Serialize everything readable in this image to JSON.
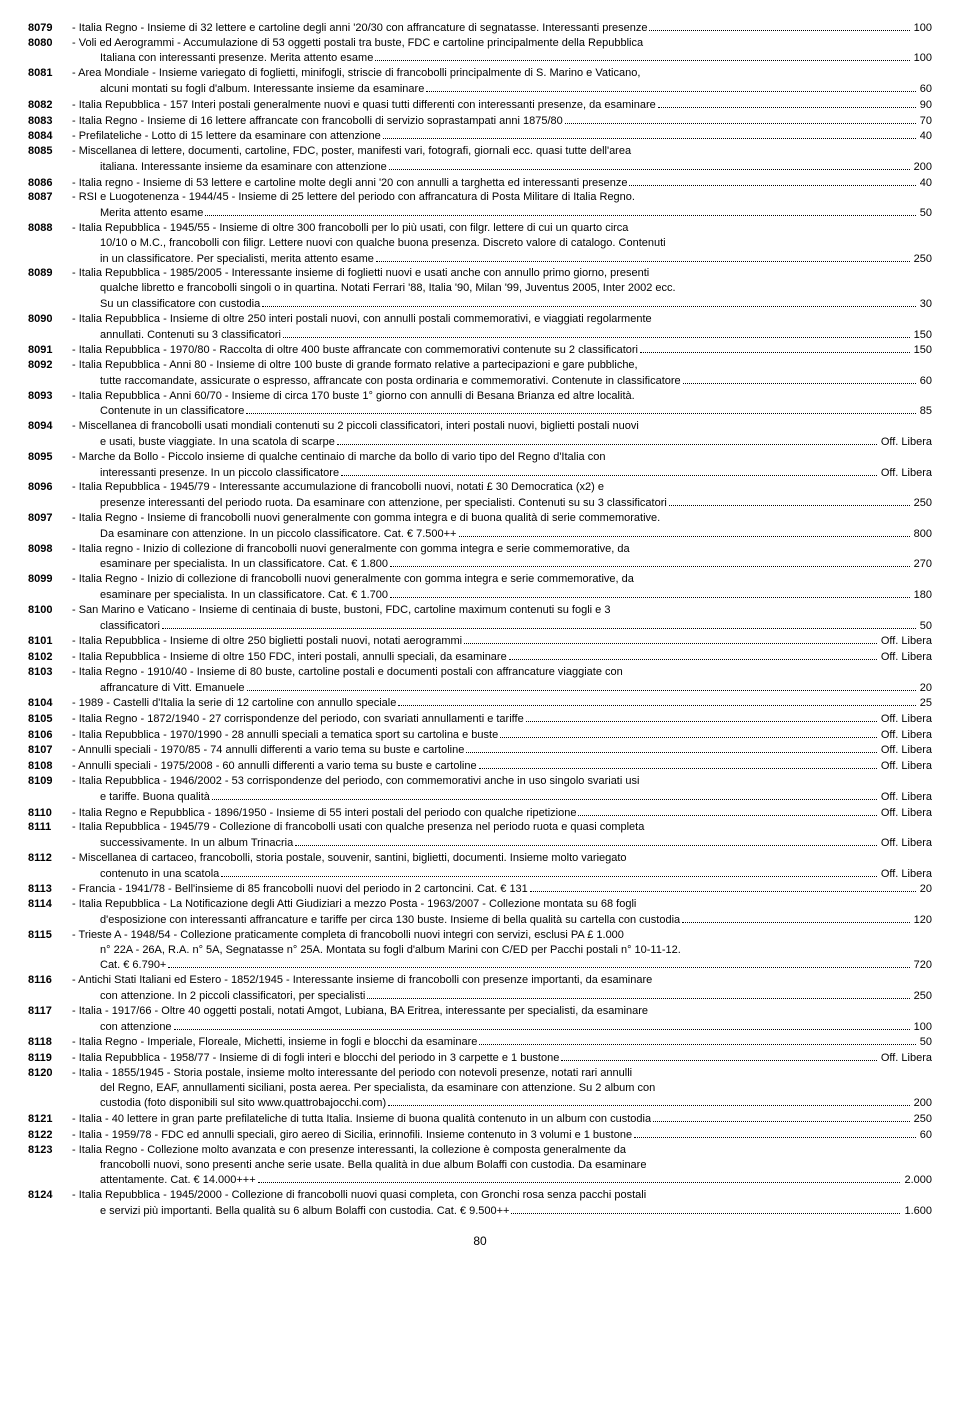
{
  "page_number": "80",
  "lots": [
    {
      "num": "8079",
      "lines": [
        {
          "t": "- Italia Regno - Insieme di 32 lettere e cartoline degli anni '20/30 con affrancature di segnatasse. Interessanti presenze",
          "p": "100"
        }
      ]
    },
    {
      "num": "8080",
      "lines": [
        {
          "t": "- Voli ed Aerogrammi - Accumulazione di 53 oggetti postali tra buste, FDC e cartoline principalmente della Repubblica"
        },
        {
          "t": "Italiana con interessanti presenze. Merita attento esame",
          "p": "100",
          "i": true
        }
      ]
    },
    {
      "num": "8081",
      "lines": [
        {
          "t": "- Area Mondiale - Insieme variegato di foglietti, minifogli, striscie di francobolli principalmente di S. Marino e Vaticano,"
        },
        {
          "t": "alcuni montati su fogli d'album. Interessante insieme da esaminare",
          "p": "60",
          "i": true
        }
      ]
    },
    {
      "num": "8082",
      "lines": [
        {
          "t": "- Italia Repubblica - 157 Interi postali generalmente nuovi e quasi tutti differenti con interessanti presenze, da esaminare",
          "p": "90"
        }
      ]
    },
    {
      "num": "8083",
      "lines": [
        {
          "t": "- Italia Regno - Insieme di 16 lettere affrancate con francobolli di servizio soprastampati anni 1875/80",
          "p": "70"
        }
      ]
    },
    {
      "num": "8084",
      "lines": [
        {
          "t": "- Prefilateliche - Lotto di 15 lettere da esaminare con attenzione",
          "p": "40"
        }
      ]
    },
    {
      "num": "8085",
      "lines": [
        {
          "t": "- Miscellanea di lettere, documenti, cartoline, FDC, poster, manifesti vari, fotografi, giornali ecc. quasi tutte dell'area"
        },
        {
          "t": "italiana. Interessante insieme da esaminare con attenzione",
          "p": "200",
          "i": true
        }
      ]
    },
    {
      "num": "8086",
      "lines": [
        {
          "t": "- Italia regno - Insieme di 53 lettere e cartoline molte degli anni '20 con annulli a targhetta ed interessanti presenze",
          "p": "40"
        }
      ]
    },
    {
      "num": "8087",
      "lines": [
        {
          "t": "- RSI e Luogotenenza - 1944/45 - Insieme di 25 lettere del periodo con affrancatura di Posta Militare di Italia Regno."
        },
        {
          "t": "Merita attento esame",
          "p": "50",
          "i": true
        }
      ]
    },
    {
      "num": "8088",
      "lines": [
        {
          "t": "- Italia Repubblica - 1945/55 - Insieme di oltre 300 francobolli per lo più usati, con filgr. lettere di cui un quarto circa"
        },
        {
          "t": "10/10 o M.C., francobolli con filigr. Lettere nuovi con qualche buona presenza. Discreto valore di catalogo. Contenuti",
          "i": true
        },
        {
          "t": "in un classificatore. Per specialisti, merita attento esame",
          "p": "250",
          "i": true
        }
      ]
    },
    {
      "num": "8089",
      "lines": [
        {
          "t": "- Italia Repubblica - 1985/2005 - Interessante insieme di foglietti nuovi e usati anche con annullo primo giorno, presenti"
        },
        {
          "t": "qualche libretto e francobolli singoli o in quartina. Notati Ferrari '88, Italia '90, Milan '99, Juventus 2005, Inter 2002 ecc.",
          "i": true
        },
        {
          "t": "Su un classificatore con custodia",
          "p": "30",
          "i": true
        }
      ]
    },
    {
      "num": "8090",
      "lines": [
        {
          "t": "- Italia Repubblica - Insieme di oltre 250 interi postali nuovi, con annulli postali commemorativi, e viaggiati regolarmente"
        },
        {
          "t": "annullati. Contenuti su 3 classificatori",
          "p": "150",
          "i": true
        }
      ]
    },
    {
      "num": "8091",
      "lines": [
        {
          "t": "- Italia Repubblica - 1970/80 - Raccolta di oltre 400 buste affrancate con commemorativi contenute su 2 classificatori",
          "p": "150"
        }
      ]
    },
    {
      "num": "8092",
      "lines": [
        {
          "t": "- Italia Repubblica - Anni 80 - Insieme di oltre 100 buste di grande formato relative a partecipazioni e gare pubbliche,"
        },
        {
          "t": "tutte raccomandate, assicurate o espresso, affrancate con posta ordinaria e commemorativi. Contenute in classificatore",
          "p": "60",
          "i": true
        }
      ]
    },
    {
      "num": "8093",
      "lines": [
        {
          "t": "- Italia Repubblica - Anni 60/70 - Insieme di circa 170 buste 1° giorno con annulli di Besana Brianza ed altre località."
        },
        {
          "t": "Contenute in un classificatore",
          "p": "85",
          "i": true
        }
      ]
    },
    {
      "num": "8094",
      "lines": [
        {
          "t": "- Miscellanea di francobolli usati mondiali contenuti su 2 piccoli classificatori, interi postali nuovi, biglietti postali nuovi"
        },
        {
          "t": "e usati, buste viaggiate. In una scatola di scarpe",
          "p": "Off. Libera",
          "i": true
        }
      ]
    },
    {
      "num": "8095",
      "lines": [
        {
          "t": "- Marche da Bollo - Piccolo insieme di qualche centinaio di marche da bollo di vario tipo del Regno d'Italia con"
        },
        {
          "t": "interessanti presenze. In un piccolo classificatore",
          "p": "Off. Libera",
          "i": true
        }
      ]
    },
    {
      "num": "8096",
      "lines": [
        {
          "t": "- Italia Repubblica - 1945/79 - Interessante accumulazione di francobolli nuovi, notati £ 30 Democratica (x2) e"
        },
        {
          "t": "presenze interessanti del periodo ruota. Da esaminare con attenzione, per specialisti. Contenuti su su 3 classificatori",
          "p": "250",
          "i": true
        }
      ]
    },
    {
      "num": "8097",
      "lines": [
        {
          "t": "- Italia Regno - Insieme di francobolli nuovi generalmente con gomma integra e di buona qualità di serie commemorative."
        },
        {
          "t": "Da esaminare con attenzione. In un piccolo classificatore. Cat. € 7.500++",
          "p": "800",
          "i": true
        }
      ]
    },
    {
      "num": "8098",
      "lines": [
        {
          "t": "- Italia regno - Inizio di collezione di francobolli nuovi generalmente con gomma integra e serie commemorative, da"
        },
        {
          "t": "esaminare per specialista. In un classificatore. Cat. € 1.800",
          "p": "270",
          "i": true
        }
      ]
    },
    {
      "num": "8099",
      "lines": [
        {
          "t": "- Italia Regno - Inizio di collezione di francobolli nuovi generalmente con gomma integra e serie commemorative, da"
        },
        {
          "t": "esaminare per specialista. In un classificatore. Cat. € 1.700",
          "p": "180",
          "i": true
        }
      ]
    },
    {
      "num": "8100",
      "lines": [
        {
          "t": "- San Marino e Vaticano - Insieme di centinaia di buste, bustoni, FDC, cartoline maximum contenuti su fogli e 3"
        },
        {
          "t": "classificatori",
          "p": "50",
          "i": true
        }
      ]
    },
    {
      "num": "8101",
      "lines": [
        {
          "t": "- Italia Repubblica - Insieme di oltre 250 biglietti postali nuovi, notati aerogrammi",
          "p": "Off. Libera"
        }
      ]
    },
    {
      "num": "8102",
      "lines": [
        {
          "t": "- Italia Repubblica - Insieme di oltre 150 FDC, interi postali, annulli speciali, da esaminare",
          "p": "Off. Libera"
        }
      ]
    },
    {
      "num": "8103",
      "lines": [
        {
          "t": "- Italia Regno - 1910/40 - Insieme di 80 buste, cartoline postali e documenti postali con affrancature viaggiate con"
        },
        {
          "t": "affrancature di Vitt. Emanuele",
          "p": "20",
          "i": true
        }
      ]
    },
    {
      "num": "8104",
      "lines": [
        {
          "t": "- 1989 - Castelli d'Italia la serie di 12 cartoline con annullo speciale",
          "p": "25"
        }
      ]
    },
    {
      "num": "8105",
      "lines": [
        {
          "t": "- Italia Regno - 1872/1940 - 27 corrispondenze del periodo, con svariati annullamenti e tariffe",
          "p": "Off. Libera"
        }
      ]
    },
    {
      "num": "8106",
      "lines": [
        {
          "t": "- Italia Repubblica - 1970/1990 - 28 annulli speciali a tematica sport su cartolina e buste",
          "p": "Off. Libera"
        }
      ]
    },
    {
      "num": "8107",
      "lines": [
        {
          "t": "- Annulli speciali - 1970/85 - 74 annulli differenti a vario tema su buste e cartoline",
          "p": "Off. Libera"
        }
      ]
    },
    {
      "num": "8108",
      "lines": [
        {
          "t": "- Annulli speciali - 1975/2008 - 60 annulli differenti a vario tema su buste e cartoline",
          "p": "Off. Libera"
        }
      ]
    },
    {
      "num": "8109",
      "lines": [
        {
          "t": "- Italia Repubblica - 1946/2002 - 53 corrispondenze del periodo, con commemorativi anche in uso singolo svariati usi"
        },
        {
          "t": "e tariffe. Buona qualità",
          "p": "Off. Libera",
          "i": true
        }
      ]
    },
    {
      "num": "8110",
      "lines": [
        {
          "t": "- Italia Regno e Repubblica - 1896/1950 - Insieme di 55 interi postali del periodo con qualche ripetizione",
          "p": "Off. Libera"
        }
      ]
    },
    {
      "num": "8111",
      "lines": [
        {
          "t": "- Italia Repubblica - 1945/79 - Collezione di francobolli usati con qualche presenza nel periodo ruota e quasi completa"
        },
        {
          "t": "successivamente. In un album Trinacria",
          "p": "Off. Libera",
          "i": true
        }
      ]
    },
    {
      "num": "8112",
      "lines": [
        {
          "t": "- Miscellanea di cartaceo, francobolli, storia postale, souvenir, santini, biglietti, documenti. Insieme molto variegato"
        },
        {
          "t": "contenuto in una scatola",
          "p": "Off. Libera",
          "i": true
        }
      ]
    },
    {
      "num": "8113",
      "lines": [
        {
          "t": "- Francia - 1941/78 - Bell'insieme di 85 francobolli nuovi del periodo in 2 cartoncini. Cat. € 131",
          "p": "20"
        }
      ]
    },
    {
      "num": "8114",
      "lines": [
        {
          "t": "- Italia Repubblica - La Notificazione degli Atti Giudiziari a mezzo Posta - 1963/2007 - Collezione montata su 68 fogli"
        },
        {
          "t": "d'esposizione con interessanti affrancature e tariffe per circa 130 buste. Insieme di bella qualità su cartella con custodia",
          "p": "120",
          "i": true
        }
      ]
    },
    {
      "num": "8115",
      "lines": [
        {
          "t": "- Trieste A - 1948/54 - Collezione praticamente completa di francobolli nuovi integri con servizi, esclusi PA £ 1.000"
        },
        {
          "t": "n° 22A - 26A, R.A. n° 5A, Segnatasse n° 25A. Montata su fogli d'album Marini con C/ED per Pacchi postali n° 10-11-12.",
          "i": true
        },
        {
          "t": "Cat. € 6.790+",
          "p": "720",
          "i": true
        }
      ]
    },
    {
      "num": "8116",
      "lines": [
        {
          "t": "- Antichi Stati Italiani ed Estero - 1852/1945 - Interessante insieme di francobolli con presenze importanti, da esaminare"
        },
        {
          "t": "con attenzione. In 2 piccoli classificatori, per specialisti",
          "p": "250",
          "i": true
        }
      ]
    },
    {
      "num": "8117",
      "lines": [
        {
          "t": "- Italia - 1917/66 - Oltre 40 oggetti postali, notati Amgot, Lubiana, BA Eritrea, interessante per specialisti, da esaminare"
        },
        {
          "t": "con attenzione",
          "p": "100",
          "i": true
        }
      ]
    },
    {
      "num": "8118",
      "lines": [
        {
          "t": "- Italia Regno - Imperiale, Floreale, Michetti, insieme in fogli e blocchi da esaminare",
          "p": "50"
        }
      ]
    },
    {
      "num": "8119",
      "lines": [
        {
          "t": "- Italia Repubblica - 1958/77 - Insieme di di fogli interi e blocchi del periodo in 3 carpette e 1 bustone",
          "p": "Off. Libera"
        }
      ]
    },
    {
      "num": "8120",
      "lines": [
        {
          "t": "- Italia - 1855/1945 - Storia postale, insieme molto interessante del periodo con notevoli presenze, notati rari annulli"
        },
        {
          "t": "del Regno, EAF, annullamenti siciliani, posta aerea. Per specialista, da esaminare con attenzione. Su 2 album con",
          "i": true
        },
        {
          "t": "custodia (foto disponibili sul sito www.quattrobajocchi.com)",
          "p": "200",
          "i": true
        }
      ]
    },
    {
      "num": "8121",
      "lines": [
        {
          "t": "- Italia - 40 lettere in gran parte prefilateliche di tutta Italia. Insieme di buona qualità contenuto in un album con custodia",
          "p": "250"
        }
      ]
    },
    {
      "num": "8122",
      "lines": [
        {
          "t": "- Italia - 1959/78 - FDC ed annulli speciali, giro aereo di Sicilia, erinnofili. Insieme contenuto in 3 volumi e 1 bustone",
          "p": "60"
        }
      ]
    },
    {
      "num": "8123",
      "lines": [
        {
          "t": "- Italia Regno - Collezione molto avanzata e con presenze interessanti, la collezione è composta generalmente da"
        },
        {
          "t": "francobolli nuovi, sono presenti anche serie usate. Bella qualità in due album Bolaffi con custodia. Da esaminare",
          "i": true
        },
        {
          "t": "attentamente. Cat. € 14.000+++",
          "p": "2.000",
          "i": true
        }
      ]
    },
    {
      "num": "8124",
      "lines": [
        {
          "t": "- Italia Repubblica - 1945/2000 - Collezione di francobolli nuovi quasi completa, con Gronchi rosa senza pacchi postali"
        },
        {
          "t": "e servizi più importanti. Bella qualità su 6 album Bolaffi con custodia. Cat. € 9.500++",
          "p": "1.600",
          "i": true
        }
      ]
    }
  ]
}
